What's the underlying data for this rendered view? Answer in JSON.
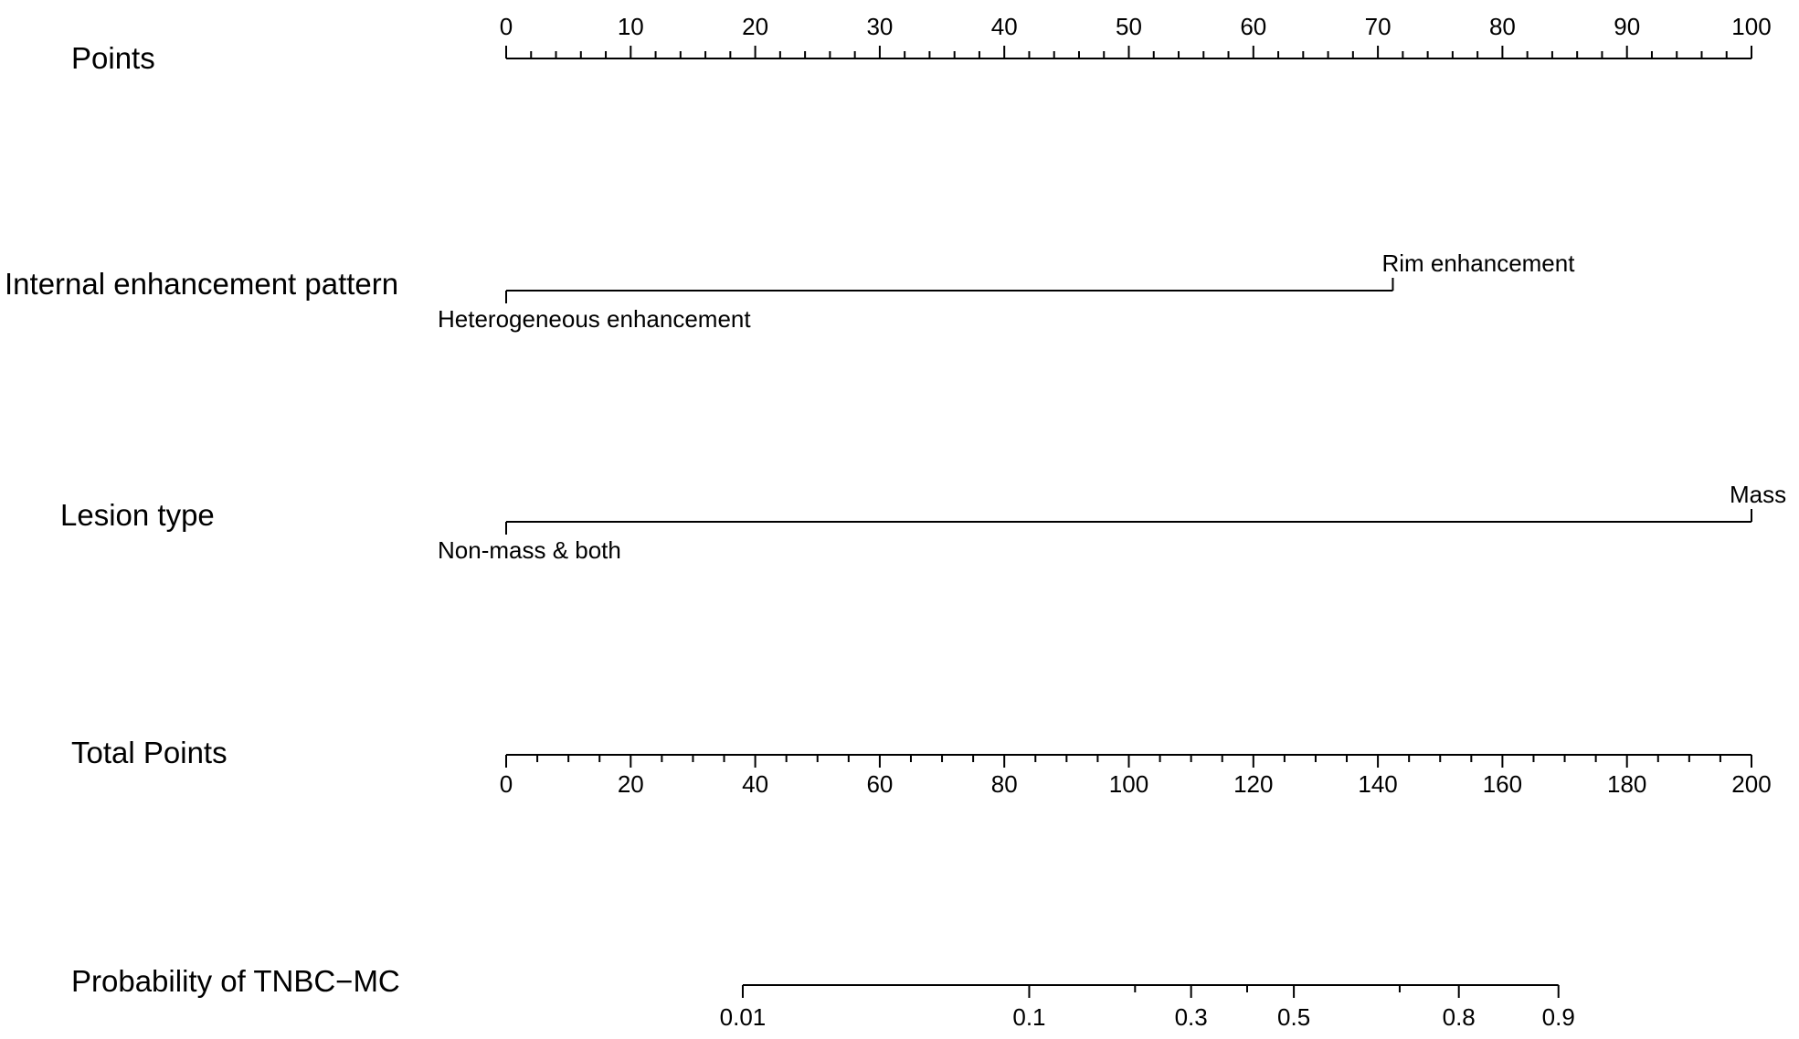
{
  "chart_data": {
    "type": "nomogram",
    "title": "",
    "rows": [
      {
        "name": "Points",
        "kind": "axis",
        "range": [
          0,
          100
        ],
        "major_ticks": [
          0,
          10,
          20,
          30,
          40,
          50,
          60,
          70,
          80,
          90,
          100
        ],
        "tick_labels": [
          "0",
          "10",
          "20",
          "30",
          "40",
          "50",
          "60",
          "70",
          "80",
          "90",
          "100"
        ],
        "minor_step": 2,
        "label_position": "above"
      },
      {
        "name": "Internal enhancement pattern",
        "kind": "categorical",
        "categories": [
          {
            "label": "Heterogeneous enhancement",
            "points": 0,
            "label_position": "below"
          },
          {
            "label": "Rim enhancement",
            "points": 71.2,
            "label_position": "above"
          }
        ]
      },
      {
        "name": "Lesion type",
        "kind": "categorical",
        "categories": [
          {
            "label": "Non-mass & both",
            "points": 0,
            "label_position": "below"
          },
          {
            "label": "Mass",
            "points": 100,
            "label_position": "above"
          }
        ]
      },
      {
        "name": "Total Points",
        "kind": "axis",
        "range": [
          0,
          200
        ],
        "major_ticks": [
          0,
          20,
          40,
          60,
          80,
          100,
          120,
          140,
          160,
          180,
          200
        ],
        "tick_labels": [
          "0",
          "20",
          "40",
          "60",
          "80",
          "100",
          "120",
          "140",
          "160",
          "180",
          "200"
        ],
        "minor_step": 5,
        "label_position": "below"
      },
      {
        "name": "Probability of TNBC−MC",
        "kind": "probability",
        "ticks": [
          {
            "label": "0.01",
            "total_points": 38
          },
          {
            "label": "0.1",
            "total_points": 84
          },
          {
            "label": "0.3",
            "total_points": 110
          },
          {
            "label": "0.5",
            "total_points": 126.5
          },
          {
            "label": "0.8",
            "total_points": 153
          },
          {
            "label": "0.9",
            "total_points": 169
          }
        ],
        "minor_ticks_total_points": [
          101,
          119,
          143.5
        ],
        "label_position": "below"
      }
    ]
  }
}
